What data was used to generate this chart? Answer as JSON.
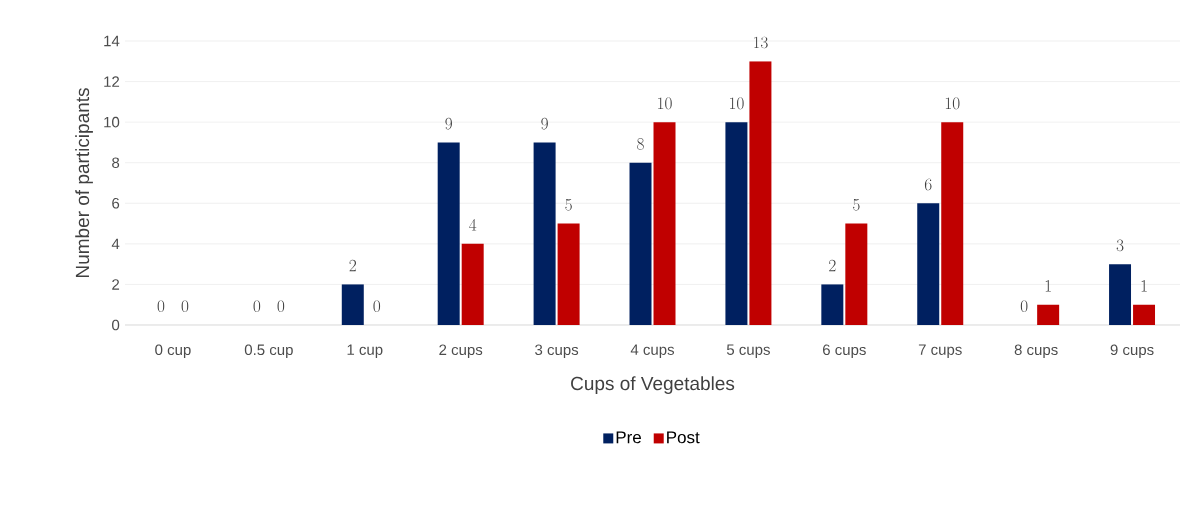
{
  "chart_data": {
    "type": "bar",
    "xlabel": "Cups of Vegetables",
    "ylabel": "Number of participants",
    "categories": [
      "0 cup",
      "0.5 cup",
      "1 cup",
      "2 cups",
      "3 cups",
      "4 cups",
      "5 cups",
      "6 cups",
      "7 cups",
      "8 cups",
      "9 cups"
    ],
    "series": [
      {
        "name": "Pre",
        "color": "#002060",
        "values": [
          0,
          0,
          2,
          9,
          9,
          8,
          10,
          2,
          6,
          0,
          3
        ]
      },
      {
        "name": "Post",
        "color": "#c00000",
        "values": [
          0,
          0,
          0,
          4,
          5,
          10,
          13,
          5,
          10,
          1,
          1
        ]
      }
    ],
    "ylim": [
      0,
      14
    ],
    "yticks": [
      0,
      2,
      4,
      6,
      8,
      10,
      12,
      14
    ],
    "grid": "y",
    "legend": "bottom",
    "data_labels": true
  }
}
